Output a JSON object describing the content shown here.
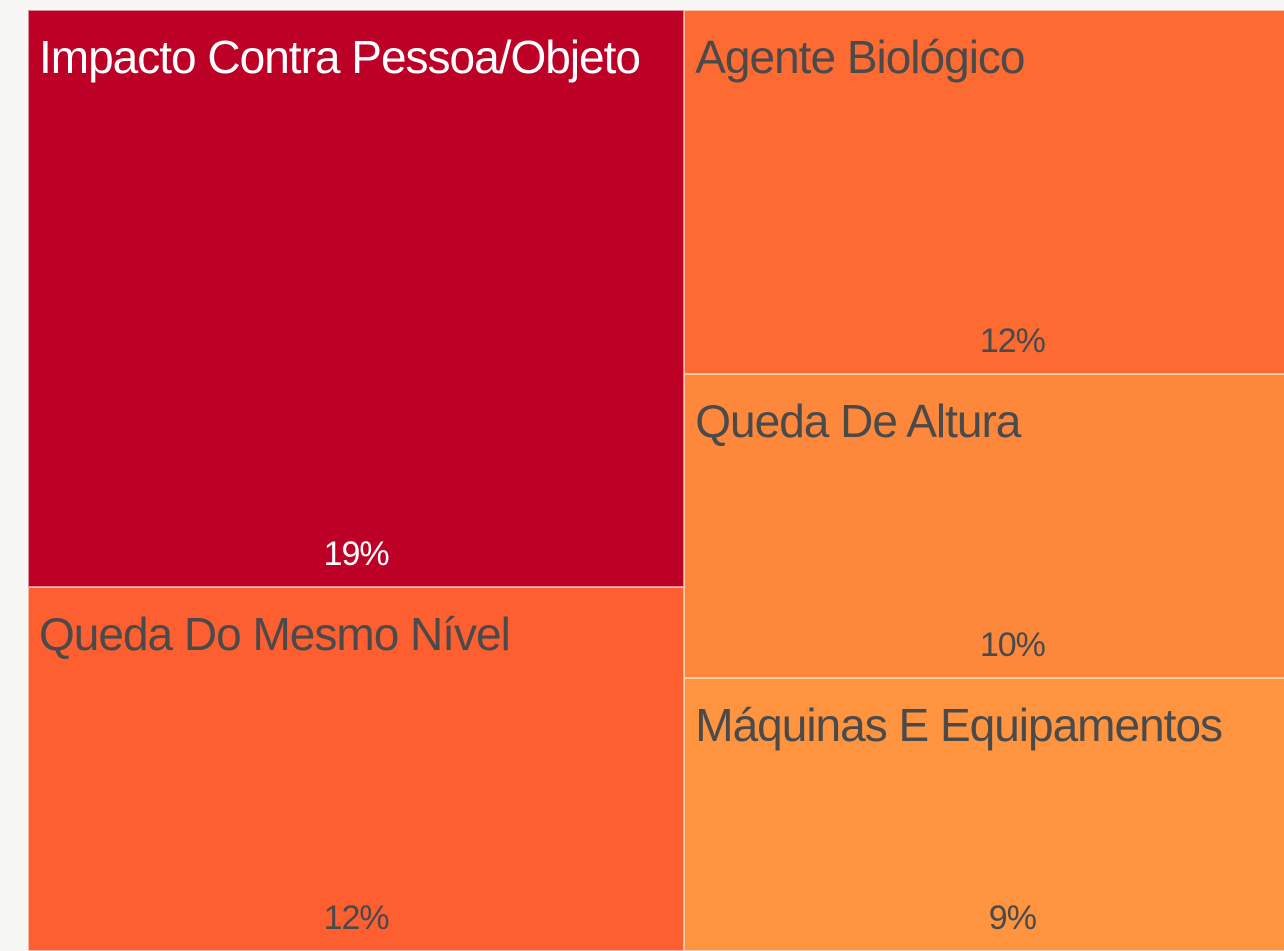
{
  "chart_data": {
    "type": "treemap",
    "categories": [
      "Impacto Contra Pessoa/Objeto",
      "Queda Do Mesmo Nível",
      "Agente Biológico",
      "Queda De Altura",
      "Máquinas E Equipamentos"
    ],
    "values": [
      19,
      12,
      12,
      10,
      9
    ],
    "value_labels": [
      "19%",
      "12%",
      "12%",
      "10%",
      "9%"
    ],
    "colors": [
      "#bc0026",
      "#fd5f31",
      "#fd6b33",
      "#fd883b",
      "#fe9340"
    ]
  }
}
